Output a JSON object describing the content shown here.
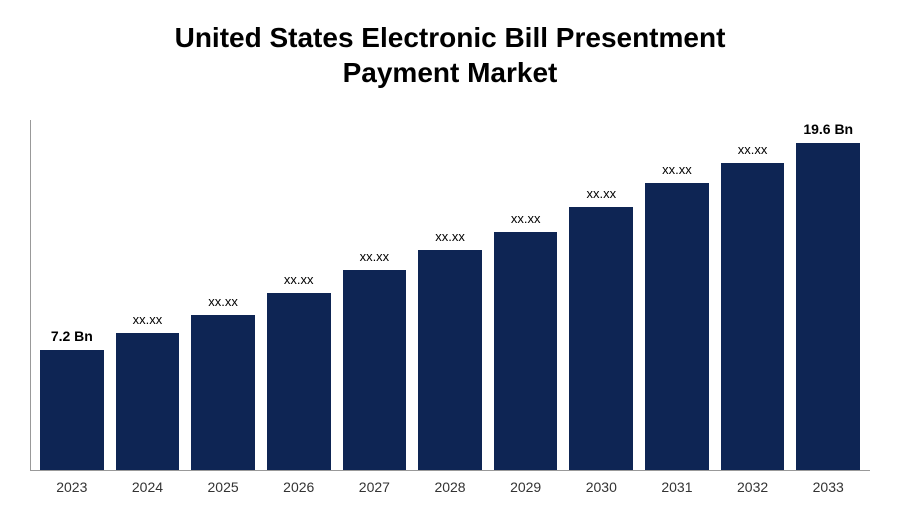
{
  "chart": {
    "type": "bar",
    "title_line1": "United States Electronic Bill Presentment",
    "title_line2": "Payment Market",
    "title_fontsize": 28,
    "title_color": "#000000",
    "background_color": "#ffffff",
    "bar_color": "#0e2554",
    "axis_color": "#999999",
    "label_color": "#333333",
    "data_label_color": "#000000",
    "data_label_fontsize_bold": 14,
    "data_label_fontsize_small": 13,
    "x_label_fontsize": 14,
    "bar_gap": 12,
    "ylim": [
      0,
      21
    ],
    "categories": [
      "2023",
      "2024",
      "2025",
      "2026",
      "2027",
      "2028",
      "2029",
      "2030",
      "2031",
      "2032",
      "2033"
    ],
    "values": [
      7.2,
      8.2,
      9.3,
      10.6,
      12.0,
      13.2,
      14.3,
      15.8,
      17.2,
      18.4,
      19.6
    ],
    "data_labels": [
      "7.2 Bn",
      "xx.xx",
      "xx.xx",
      "xx.xx",
      "xx.xx",
      "xx.xx",
      "xx.xx",
      "xx.xx",
      "xx.xx",
      "xx.xx",
      "19.6 Bn"
    ],
    "data_label_bold": [
      true,
      false,
      false,
      false,
      false,
      false,
      false,
      false,
      false,
      false,
      true
    ]
  }
}
